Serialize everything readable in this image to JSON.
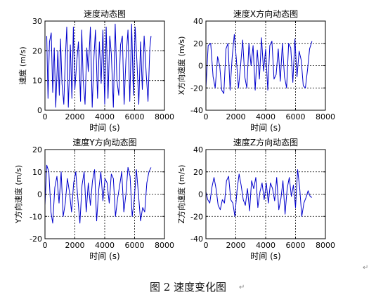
{
  "figure_caption": "图 2  速度变化图",
  "paragraph_mark": "↵",
  "colors": {
    "line": "#0000cc",
    "axes": "#000000",
    "grid": "#000000",
    "background": "#ffffff"
  },
  "chart_data": [
    {
      "type": "line",
      "title": "速度动态图",
      "xlabel": "时间 (s)",
      "ylabel": "速度 (m/s)",
      "xlim": [
        0,
        8000
      ],
      "ylim": [
        0,
        30
      ],
      "xticks": [
        0,
        2000,
        4000,
        6000,
        8000
      ],
      "yticks": [
        0,
        10,
        20,
        30
      ],
      "grid": true,
      "series": [
        {
          "x": [
            120,
            200,
            300,
            420,
            520,
            620,
            720,
            860,
            960,
            1040,
            1140,
            1260,
            1360,
            1460,
            1560,
            1700,
            1800,
            1900,
            2000,
            2120,
            2240,
            2380,
            2460,
            2560,
            2680,
            2800,
            2900,
            3040,
            3160,
            3280,
            3380,
            3520,
            3640,
            3760,
            3880,
            4000,
            4100,
            4220,
            4340,
            4440,
            4580,
            4700,
            4820,
            4940,
            5060,
            5180,
            5300,
            5420,
            5560,
            5680,
            5800,
            5920,
            6040,
            6160,
            6280,
            6400,
            6520,
            6640,
            6780,
            6900,
            7020,
            7100
          ],
          "y": [
            25,
            4,
            23,
            26,
            6,
            21,
            1,
            20,
            5,
            24,
            9,
            2,
            17,
            28,
            1,
            22,
            4,
            28,
            7,
            16,
            23,
            3,
            27,
            10,
            2,
            21,
            13,
            28,
            1,
            18,
            27,
            4,
            23,
            9,
            27,
            2,
            28,
            4,
            25,
            19,
            1,
            29,
            10,
            5,
            22,
            25,
            2,
            17,
            27,
            3,
            29,
            5,
            28,
            16,
            2,
            23,
            7,
            25,
            12,
            3,
            21,
            25
          ]
        }
      ]
    },
    {
      "type": "line",
      "title": "速度X方向动态图",
      "xlabel": "时间 (s)",
      "ylabel": "X方向速度 (m/s)",
      "xlim": [
        0,
        8000
      ],
      "ylim": [
        -40,
        40
      ],
      "xticks": [
        0,
        2000,
        4000,
        6000,
        8000
      ],
      "yticks": [
        -40,
        -20,
        0,
        20,
        40
      ],
      "grid": true,
      "series": [
        {
          "x": [
            0,
            150,
            320,
            480,
            620,
            780,
            920,
            1060,
            1200,
            1340,
            1480,
            1620,
            1760,
            1900,
            2040,
            2180,
            2320,
            2460,
            2600,
            2740,
            2880,
            3020,
            3160,
            3300,
            3440,
            3580,
            3720,
            3860,
            4000,
            4140,
            4280,
            4420,
            4560,
            4700,
            4840,
            4980,
            5120,
            5260,
            5400,
            5540,
            5680,
            5820,
            5960,
            6100,
            6240,
            6380,
            6520,
            6660,
            6800,
            6940,
            7100
          ],
          "y": [
            -20,
            18,
            20,
            -10,
            -20,
            8,
            0,
            -22,
            -25,
            15,
            20,
            -22,
            8,
            28,
            5,
            -20,
            0,
            23,
            -10,
            -20,
            20,
            0,
            18,
            -22,
            14,
            -12,
            25,
            -5,
            15,
            -22,
            18,
            22,
            -12,
            -8,
            15,
            -14,
            20,
            -10,
            -20,
            20,
            16,
            -15,
            24,
            -10,
            13,
            5,
            -18,
            -20,
            -4,
            15,
            22
          ]
        }
      ]
    },
    {
      "type": "line",
      "title": "速度Y方向动态图",
      "xlabel": "时间 (s)",
      "ylabel": "Y方向速度 (m/s)",
      "xlim": [
        0,
        8000
      ],
      "ylim": [
        -20,
        20
      ],
      "xticks": [
        0,
        2000,
        4000,
        6000,
        8000
      ],
      "yticks": [
        -20,
        -10,
        0,
        10,
        20
      ],
      "grid": true,
      "series": [
        {
          "x": [
            0,
            120,
            260,
            400,
            520,
            660,
            800,
            940,
            1080,
            1220,
            1360,
            1500,
            1640,
            1780,
            1920,
            2060,
            2200,
            2340,
            2480,
            2620,
            2760,
            2900,
            3040,
            3180,
            3320,
            3460,
            3600,
            3740,
            3880,
            4020,
            4160,
            4300,
            4440,
            4580,
            4720,
            4860,
            5000,
            5140,
            5280,
            5420,
            5560,
            5700,
            5840,
            5980,
            6120,
            6260,
            6400,
            6540,
            6680,
            6820,
            6960,
            7100
          ],
          "y": [
            -5,
            13,
            10,
            -8,
            -13,
            3,
            8,
            -4,
            10,
            -10,
            -4,
            7,
            1,
            -8,
            5,
            10,
            -2,
            -13,
            4,
            10,
            -8,
            5,
            -5,
            6,
            11,
            -12,
            2,
            10,
            -3,
            7,
            5,
            -4,
            9,
            7,
            -10,
            -2,
            4,
            10,
            -8,
            0,
            12,
            8,
            -10,
            -2,
            11,
            0,
            -12,
            -6,
            -8,
            5,
            10,
            12
          ]
        }
      ]
    },
    {
      "type": "line",
      "title": "速度Z方向动态图",
      "xlabel": "时间 (s)",
      "ylabel": "Z方向速度 (m/s)",
      "xlim": [
        0,
        8000
      ],
      "ylim": [
        -40,
        40
      ],
      "xticks": [
        0,
        2000,
        4000,
        6000,
        8000
      ],
      "yticks": [
        -40,
        -20,
        0,
        20,
        40
      ],
      "grid": true,
      "series": [
        {
          "x": [
            0,
            120,
            260,
            400,
            540,
            680,
            820,
            960,
            1100,
            1240,
            1380,
            1520,
            1660,
            1800,
            1940,
            2080,
            2220,
            2360,
            2500,
            2640,
            2780,
            2920,
            3060,
            3200,
            3340,
            3480,
            3620,
            3760,
            3900,
            4040,
            4180,
            4320,
            4460,
            4600,
            4740,
            4880,
            5020,
            5160,
            5300,
            5440,
            5580,
            5720,
            5860,
            6000,
            6140,
            6280,
            6420,
            6560,
            6700,
            6840,
            6980,
            7100
          ],
          "y": [
            2,
            -5,
            -8,
            6,
            15,
            5,
            -10,
            -14,
            -5,
            -8,
            12,
            16,
            -5,
            -8,
            -20,
            3,
            18,
            8,
            -5,
            -10,
            5,
            -15,
            12,
            5,
            15,
            -12,
            2,
            10,
            -5,
            10,
            -8,
            10,
            5,
            -6,
            15,
            -14,
            -4,
            12,
            -18,
            5,
            15,
            -2,
            8,
            -12,
            22,
            5,
            -20,
            -8,
            -3,
            3,
            -2,
            -3
          ]
        }
      ]
    }
  ]
}
